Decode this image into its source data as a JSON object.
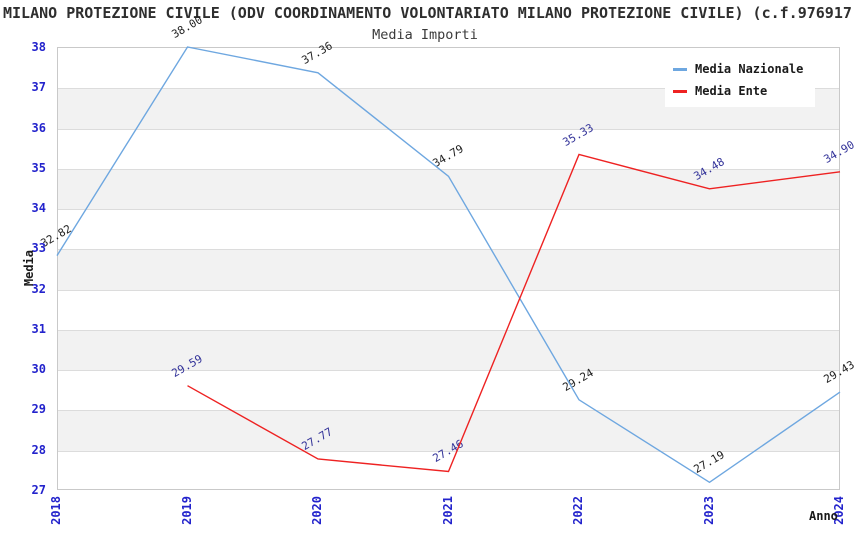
{
  "figure": {
    "title": "MILANO PROTEZIONE CIVILE (ODV COORDINAMENTO VOLONTARIATO MILANO PROTEZIONE CIVILE) (c.f.976917",
    "subtitle": "Media Importi"
  },
  "chart_data": {
    "type": "line",
    "title": "Media Importi",
    "xlabel": "Anno",
    "ylabel": "Media",
    "x": [
      "2018",
      "2019",
      "2020",
      "2021",
      "2022",
      "2023",
      "2024"
    ],
    "ylim": [
      27,
      38
    ],
    "yticks": [
      27,
      28,
      29,
      30,
      31,
      32,
      33,
      34,
      35,
      36,
      37,
      38
    ],
    "grid": "horizontal gridlines at each integer with alternating light-gray bands",
    "legend_position": "top-right",
    "series": [
      {
        "name": "Media Nazionale",
        "color": "#6ea7e0",
        "label_color": "#1f1f1f",
        "values": [
          32.82,
          38.0,
          37.36,
          34.79,
          29.24,
          27.19,
          29.43
        ],
        "point_labels": [
          "32.82",
          "38.00",
          "37.36",
          "34.79",
          "29.24",
          "27.19",
          "29.43"
        ]
      },
      {
        "name": "Media Ente",
        "color": "#ee2222",
        "label_color": "#333399",
        "values": [
          null,
          29.59,
          27.77,
          27.46,
          35.33,
          34.48,
          34.9
        ],
        "point_labels": [
          null,
          "29.59",
          "27.77",
          "27.46",
          "35.33",
          "34.48",
          "34.90"
        ]
      }
    ]
  },
  "colors": {
    "axis_tick_label": "#2323cc",
    "band_gray": "#f2f2f2",
    "gridline": "#dcdcdc",
    "plot_border": "#c9c9c9",
    "title_text": "#2e2e2e"
  }
}
